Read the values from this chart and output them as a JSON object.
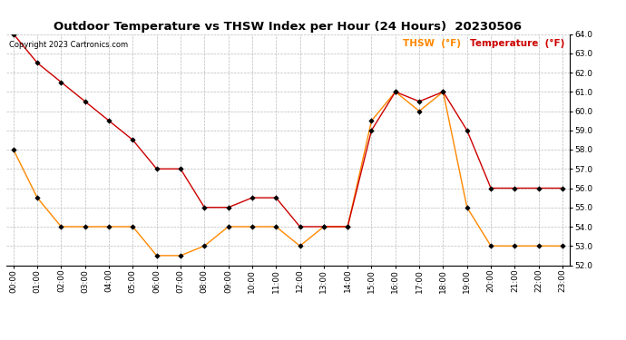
{
  "title": "Outdoor Temperature vs THSW Index per Hour (24 Hours)  20230506",
  "copyright": "Copyright 2023 Cartronics.com",
  "legend_thsw": "THSW  (°F)",
  "legend_temp": "Temperature  (°F)",
  "hours": [
    0,
    1,
    2,
    3,
    4,
    5,
    6,
    7,
    8,
    9,
    10,
    11,
    12,
    13,
    14,
    15,
    16,
    17,
    18,
    19,
    20,
    21,
    22,
    23
  ],
  "temperature": [
    64.0,
    62.5,
    61.5,
    60.5,
    59.5,
    58.5,
    57.0,
    57.0,
    55.0,
    55.0,
    55.5,
    55.5,
    54.0,
    54.0,
    54.0,
    59.0,
    61.0,
    60.5,
    61.0,
    59.0,
    56.0,
    56.0,
    56.0,
    56.0
  ],
  "thsw": [
    58.0,
    55.5,
    54.0,
    54.0,
    54.0,
    54.0,
    52.5,
    52.5,
    53.0,
    54.0,
    54.0,
    54.0,
    53.0,
    54.0,
    54.0,
    59.5,
    61.0,
    60.0,
    61.0,
    55.0,
    53.0,
    53.0,
    53.0,
    53.0
  ],
  "ylim": [
    52.0,
    64.0
  ],
  "yticks": [
    52.0,
    53.0,
    54.0,
    55.0,
    56.0,
    57.0,
    58.0,
    59.0,
    60.0,
    61.0,
    62.0,
    63.0,
    64.0
  ],
  "temp_color": "#cc0000",
  "thsw_color": "#ff8800",
  "background_color": "#ffffff",
  "grid_color": "#bbbbbb",
  "title_fontsize": 9.5,
  "tick_fontsize": 6.5,
  "legend_fontsize": 7.5,
  "copyright_fontsize": 6.0
}
